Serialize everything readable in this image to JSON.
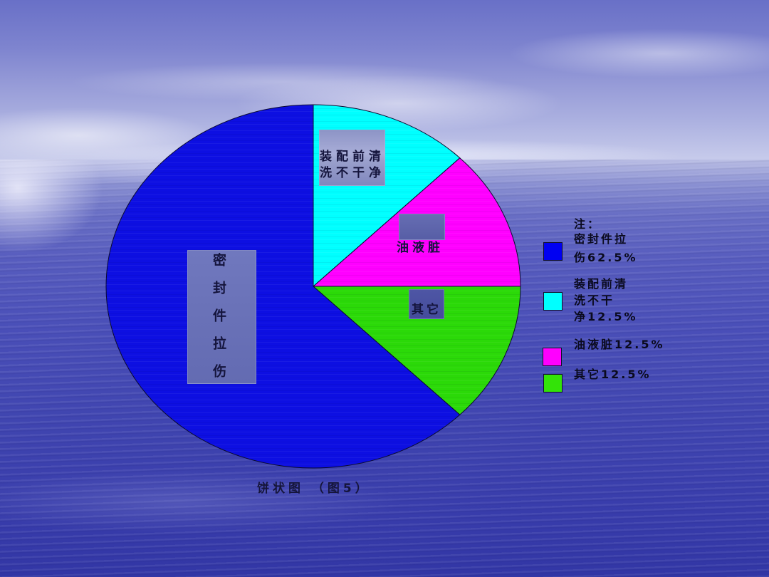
{
  "chart_data": {
    "type": "pie",
    "title": "饼状图 （图5）",
    "start_angle_deg": 0,
    "direction": "clockwise",
    "legend_position": "right",
    "outline_color": "#0A0A30",
    "slices": [
      {
        "id": "pre-assembly-cleaning",
        "label": "装配前清洗不干净",
        "value": 12.5,
        "color": "#00FFFF"
      },
      {
        "id": "dirty-oil",
        "label": "油液脏",
        "value": 12.5,
        "color": "#FF00FF"
      },
      {
        "id": "other",
        "label": "其它",
        "value": 12.5,
        "color": "#2BD908"
      },
      {
        "id": "seal-scratch",
        "label": "密封件拉伤",
        "value": 62.5,
        "color": "#0D0FE2"
      }
    ]
  },
  "legend": {
    "note": "注：",
    "items": [
      {
        "id": "seal-scratch",
        "label": "密封件拉\n伤62.5%",
        "color": "#0000F2"
      },
      {
        "id": "pre-assembly-cleaning",
        "label": "装配前清\n洗不干\n净12.5%",
        "color": "#00FFFF"
      },
      {
        "id": "dirty-oil",
        "label": "油液脏12.5%",
        "color": "#FF00FF"
      },
      {
        "id": "other",
        "label": "其它12.5%",
        "color": "#33E308"
      }
    ]
  }
}
